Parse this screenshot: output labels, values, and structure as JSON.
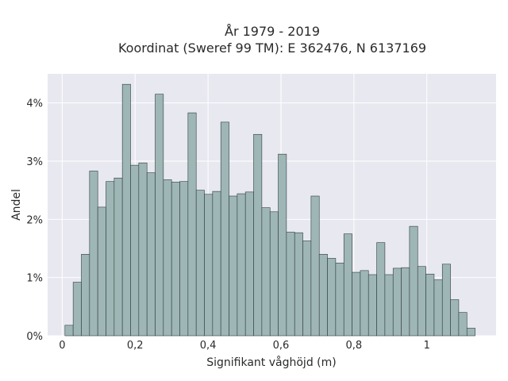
{
  "chart_data": {
    "type": "bar",
    "title_line1": "År 1979 - 2019",
    "title_line2": "Koordinat (Sweref 99 TM): E 362476, N 6137169",
    "xlabel": "Signifikant våghöjd (m)",
    "ylabel": "Andel",
    "xlim": [
      -0.04,
      1.19
    ],
    "ylim": [
      0,
      4.5
    ],
    "x_ticks": [
      {
        "value": 0,
        "label": "0"
      },
      {
        "value": 0.2,
        "label": "0,2"
      },
      {
        "value": 0.4,
        "label": "0,4"
      },
      {
        "value": 0.6,
        "label": "0,6"
      },
      {
        "value": 0.8,
        "label": "0,8"
      },
      {
        "value": 1.0,
        "label": "1"
      }
    ],
    "y_ticks": [
      {
        "value": 0,
        "label": "0%"
      },
      {
        "value": 1,
        "label": "1%"
      },
      {
        "value": 2,
        "label": "2%"
      },
      {
        "value": 3,
        "label": "3%"
      },
      {
        "value": 4,
        "label": "4%"
      }
    ],
    "bin_start": 0.0075,
    "bin_width": 0.0225,
    "values": [
      0.18,
      0.92,
      1.4,
      2.83,
      2.21,
      2.65,
      2.71,
      4.32,
      2.93,
      2.97,
      2.8,
      4.15,
      2.68,
      2.64,
      2.65,
      3.83,
      2.5,
      2.43,
      2.48,
      3.67,
      2.4,
      2.44,
      2.47,
      3.46,
      2.2,
      2.13,
      3.12,
      1.78,
      1.77,
      1.63,
      2.4,
      1.4,
      1.33,
      1.25,
      1.75,
      1.09,
      1.12,
      1.05,
      1.6,
      1.05,
      1.16,
      1.17,
      1.88,
      1.19,
      1.06,
      0.96,
      1.23,
      0.62,
      0.4,
      0.13
    ],
    "bar_color": "#9fb6b6",
    "bar_edge_color": "#2f3d3d",
    "plot_bg": "#e8e8f1",
    "grid": true
  }
}
